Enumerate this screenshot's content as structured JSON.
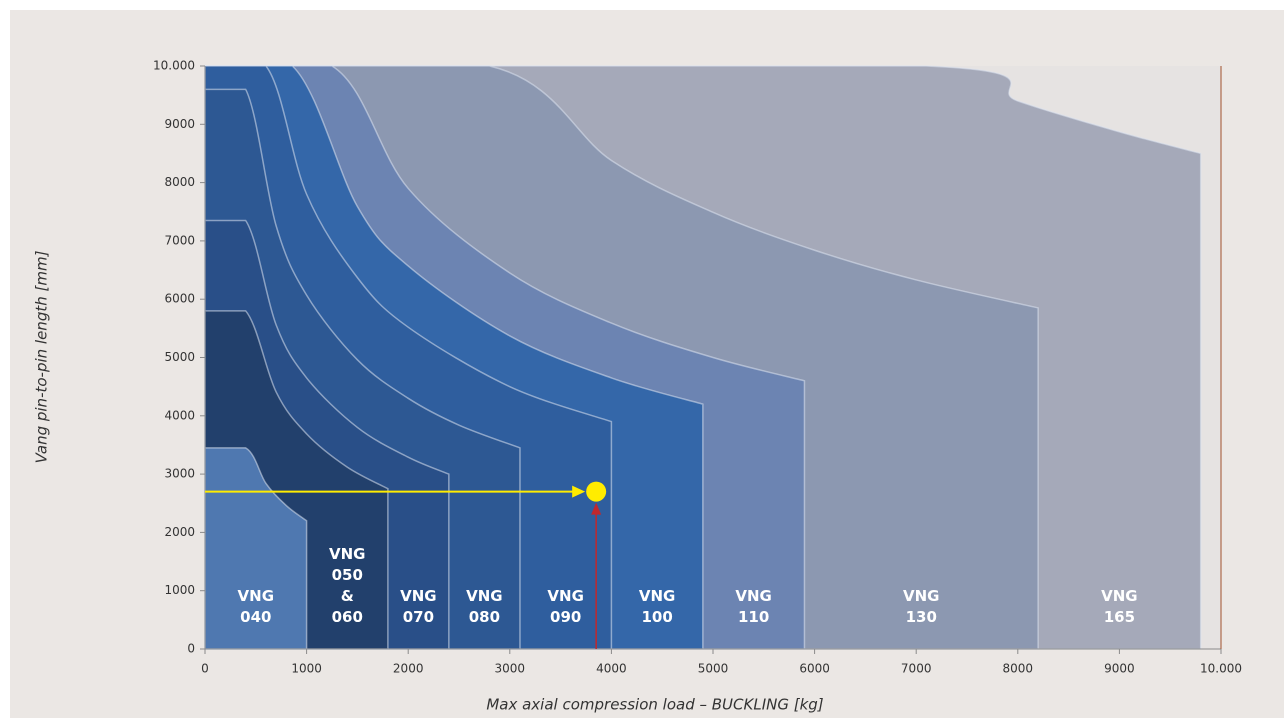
{
  "chart_data": {
    "type": "area",
    "x_label": "Max axial compression load – BUCKLING [kg]",
    "y_label": "Vang pin-to-pin length [mm]",
    "xlim": [
      0,
      10000
    ],
    "ylim": [
      0,
      10000
    ],
    "xticks": [
      0,
      1000,
      2000,
      3000,
      4000,
      5000,
      6000,
      7000,
      8000,
      9000,
      {
        "value": 10000,
        "label": "10.000"
      }
    ],
    "yticks": [
      0,
      1000,
      2000,
      3000,
      4000,
      5000,
      6000,
      7000,
      8000,
      9000,
      {
        "value": 10000,
        "label": "10.000"
      }
    ],
    "series": [
      {
        "name": "VNG\n040",
        "color": "#4f78b0",
        "x": [
          0,
          400,
          600,
          800,
          1000
        ],
        "values": [
          3450,
          3450,
          2840,
          2460,
          2200
        ]
      },
      {
        "name": "VNG\n050\n&\n060",
        "color": "#22406c",
        "x": [
          0,
          400,
          700,
          1000,
          1400,
          1800
        ],
        "values": [
          5800,
          5800,
          4410,
          3690,
          3120,
          2750
        ]
      },
      {
        "name": "VNG\n070",
        "color": "#294f88",
        "x": [
          0,
          400,
          700,
          1000,
          1500,
          2000,
          2400
        ],
        "values": [
          7350,
          7350,
          5560,
          4650,
          3800,
          3290,
          3000
        ]
      },
      {
        "name": "VNG\n080",
        "color": "#2d5893",
        "x": [
          0,
          400,
          700,
          1000,
          1500,
          2000,
          2500,
          3100
        ],
        "values": [
          9600,
          9600,
          7260,
          6070,
          4960,
          4300,
          3840,
          3450
        ]
      },
      {
        "name": "VNG\n090",
        "color": "#2f5e9e",
        "x": [
          0,
          600,
          1000,
          1500,
          2000,
          3000,
          4000
        ],
        "values": [
          10000,
          10000,
          7800,
          6370,
          5520,
          4500,
          3900
        ]
      },
      {
        "name": "VNG\n100",
        "color": "#3467a9",
        "x": [
          0,
          860,
          1500,
          2000,
          3000,
          4000,
          4900
        ],
        "values": [
          10000,
          10000,
          7590,
          6570,
          5370,
          4650,
          4200
        ]
      },
      {
        "name": "VNG\n110",
        "color": "#6c84b2",
        "x": [
          0,
          1250,
          2000,
          3000,
          4000,
          5000,
          5900
        ],
        "values": [
          10000,
          10000,
          7900,
          6450,
          5590,
          5000,
          4600
        ]
      },
      {
        "name": "VNG\n130",
        "color": "#8c98b1",
        "x": [
          0,
          2800,
          4000,
          5000,
          6000,
          7000,
          8200
        ],
        "values": [
          10000,
          10000,
          8380,
          7490,
          6840,
          6330,
          5850
        ]
      },
      {
        "name": "VNG\n165",
        "color": "#a5a9b9",
        "x": [
          0,
          7100,
          8000,
          9000,
          9800
        ],
        "values": [
          10000,
          10000,
          9400,
          8870,
          8500
        ]
      }
    ],
    "marker": {
      "x": 3850,
      "y": 2700,
      "color": "#ffec00",
      "x_arrow_color": "#c1272d",
      "y_arrow_color": "#ffec00"
    }
  }
}
